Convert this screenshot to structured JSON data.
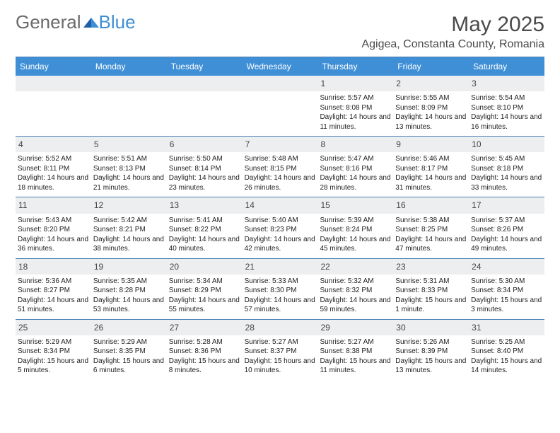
{
  "logo": {
    "part1": "General",
    "part2": "Blue"
  },
  "month_title": "May 2025",
  "location": "Agigea, Constanta County, Romania",
  "colors": {
    "accent": "#3f8fd6",
    "rule": "#4a7fb5",
    "daybar": "#eceeef",
    "text": "#222222",
    "muted": "#6a6a6a"
  },
  "weekdays": [
    "Sunday",
    "Monday",
    "Tuesday",
    "Wednesday",
    "Thursday",
    "Friday",
    "Saturday"
  ],
  "weeks": [
    [
      null,
      null,
      null,
      null,
      {
        "n": "1",
        "sr": "Sunrise: 5:57 AM",
        "ss": "Sunset: 8:08 PM",
        "dl": "Daylight: 14 hours and 11 minutes."
      },
      {
        "n": "2",
        "sr": "Sunrise: 5:55 AM",
        "ss": "Sunset: 8:09 PM",
        "dl": "Daylight: 14 hours and 13 minutes."
      },
      {
        "n": "3",
        "sr": "Sunrise: 5:54 AM",
        "ss": "Sunset: 8:10 PM",
        "dl": "Daylight: 14 hours and 16 minutes."
      }
    ],
    [
      {
        "n": "4",
        "sr": "Sunrise: 5:52 AM",
        "ss": "Sunset: 8:11 PM",
        "dl": "Daylight: 14 hours and 18 minutes."
      },
      {
        "n": "5",
        "sr": "Sunrise: 5:51 AM",
        "ss": "Sunset: 8:13 PM",
        "dl": "Daylight: 14 hours and 21 minutes."
      },
      {
        "n": "6",
        "sr": "Sunrise: 5:50 AM",
        "ss": "Sunset: 8:14 PM",
        "dl": "Daylight: 14 hours and 23 minutes."
      },
      {
        "n": "7",
        "sr": "Sunrise: 5:48 AM",
        "ss": "Sunset: 8:15 PM",
        "dl": "Daylight: 14 hours and 26 minutes."
      },
      {
        "n": "8",
        "sr": "Sunrise: 5:47 AM",
        "ss": "Sunset: 8:16 PM",
        "dl": "Daylight: 14 hours and 28 minutes."
      },
      {
        "n": "9",
        "sr": "Sunrise: 5:46 AM",
        "ss": "Sunset: 8:17 PM",
        "dl": "Daylight: 14 hours and 31 minutes."
      },
      {
        "n": "10",
        "sr": "Sunrise: 5:45 AM",
        "ss": "Sunset: 8:18 PM",
        "dl": "Daylight: 14 hours and 33 minutes."
      }
    ],
    [
      {
        "n": "11",
        "sr": "Sunrise: 5:43 AM",
        "ss": "Sunset: 8:20 PM",
        "dl": "Daylight: 14 hours and 36 minutes."
      },
      {
        "n": "12",
        "sr": "Sunrise: 5:42 AM",
        "ss": "Sunset: 8:21 PM",
        "dl": "Daylight: 14 hours and 38 minutes."
      },
      {
        "n": "13",
        "sr": "Sunrise: 5:41 AM",
        "ss": "Sunset: 8:22 PM",
        "dl": "Daylight: 14 hours and 40 minutes."
      },
      {
        "n": "14",
        "sr": "Sunrise: 5:40 AM",
        "ss": "Sunset: 8:23 PM",
        "dl": "Daylight: 14 hours and 42 minutes."
      },
      {
        "n": "15",
        "sr": "Sunrise: 5:39 AM",
        "ss": "Sunset: 8:24 PM",
        "dl": "Daylight: 14 hours and 45 minutes."
      },
      {
        "n": "16",
        "sr": "Sunrise: 5:38 AM",
        "ss": "Sunset: 8:25 PM",
        "dl": "Daylight: 14 hours and 47 minutes."
      },
      {
        "n": "17",
        "sr": "Sunrise: 5:37 AM",
        "ss": "Sunset: 8:26 PM",
        "dl": "Daylight: 14 hours and 49 minutes."
      }
    ],
    [
      {
        "n": "18",
        "sr": "Sunrise: 5:36 AM",
        "ss": "Sunset: 8:27 PM",
        "dl": "Daylight: 14 hours and 51 minutes."
      },
      {
        "n": "19",
        "sr": "Sunrise: 5:35 AM",
        "ss": "Sunset: 8:28 PM",
        "dl": "Daylight: 14 hours and 53 minutes."
      },
      {
        "n": "20",
        "sr": "Sunrise: 5:34 AM",
        "ss": "Sunset: 8:29 PM",
        "dl": "Daylight: 14 hours and 55 minutes."
      },
      {
        "n": "21",
        "sr": "Sunrise: 5:33 AM",
        "ss": "Sunset: 8:30 PM",
        "dl": "Daylight: 14 hours and 57 minutes."
      },
      {
        "n": "22",
        "sr": "Sunrise: 5:32 AM",
        "ss": "Sunset: 8:32 PM",
        "dl": "Daylight: 14 hours and 59 minutes."
      },
      {
        "n": "23",
        "sr": "Sunrise: 5:31 AM",
        "ss": "Sunset: 8:33 PM",
        "dl": "Daylight: 15 hours and 1 minute."
      },
      {
        "n": "24",
        "sr": "Sunrise: 5:30 AM",
        "ss": "Sunset: 8:34 PM",
        "dl": "Daylight: 15 hours and 3 minutes."
      }
    ],
    [
      {
        "n": "25",
        "sr": "Sunrise: 5:29 AM",
        "ss": "Sunset: 8:34 PM",
        "dl": "Daylight: 15 hours and 5 minutes."
      },
      {
        "n": "26",
        "sr": "Sunrise: 5:29 AM",
        "ss": "Sunset: 8:35 PM",
        "dl": "Daylight: 15 hours and 6 minutes."
      },
      {
        "n": "27",
        "sr": "Sunrise: 5:28 AM",
        "ss": "Sunset: 8:36 PM",
        "dl": "Daylight: 15 hours and 8 minutes."
      },
      {
        "n": "28",
        "sr": "Sunrise: 5:27 AM",
        "ss": "Sunset: 8:37 PM",
        "dl": "Daylight: 15 hours and 10 minutes."
      },
      {
        "n": "29",
        "sr": "Sunrise: 5:27 AM",
        "ss": "Sunset: 8:38 PM",
        "dl": "Daylight: 15 hours and 11 minutes."
      },
      {
        "n": "30",
        "sr": "Sunrise: 5:26 AM",
        "ss": "Sunset: 8:39 PM",
        "dl": "Daylight: 15 hours and 13 minutes."
      },
      {
        "n": "31",
        "sr": "Sunrise: 5:25 AM",
        "ss": "Sunset: 8:40 PM",
        "dl": "Daylight: 15 hours and 14 minutes."
      }
    ]
  ]
}
